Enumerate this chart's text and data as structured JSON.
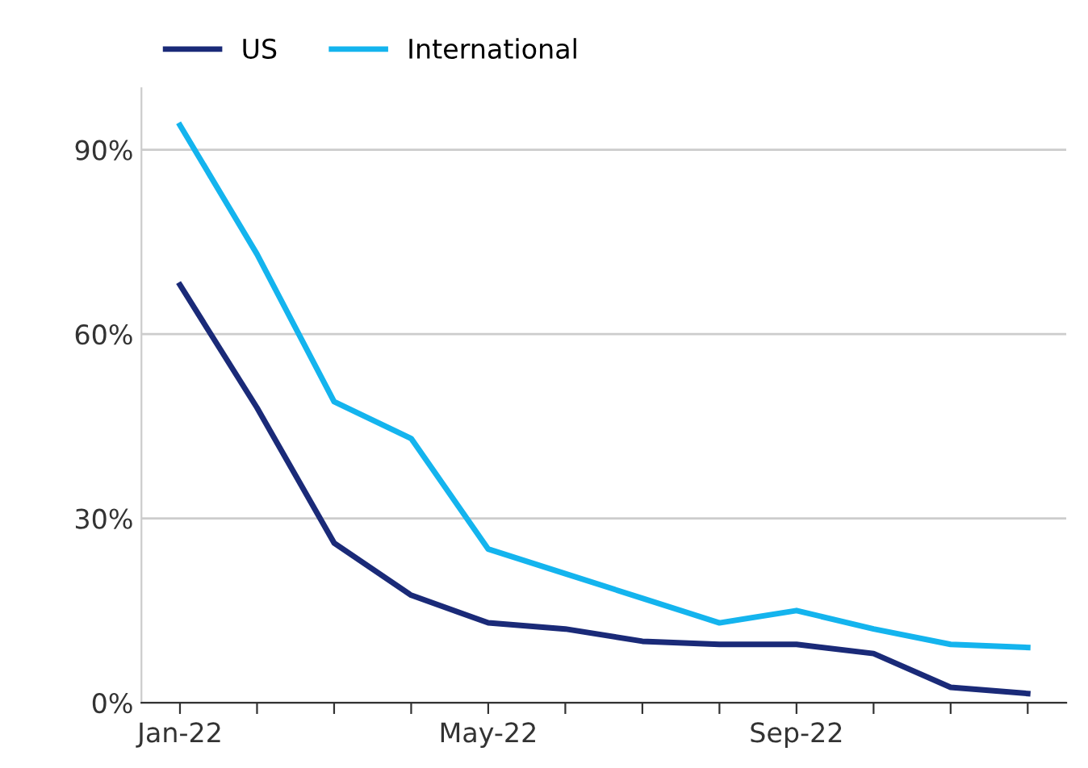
{
  "chart_data": {
    "type": "line",
    "categories": [
      "Jan-22",
      null,
      null,
      null,
      "May-22",
      null,
      null,
      null,
      "Sep-22",
      null,
      null,
      null
    ],
    "series": [
      {
        "name": "US",
        "color": "#1a2a78",
        "values": [
          68,
          48,
          26,
          17.5,
          13,
          12,
          10,
          9.5,
          9.5,
          8,
          2.5,
          1.5
        ]
      },
      {
        "name": "International",
        "color": "#14b4ee",
        "values": [
          94,
          73,
          49,
          43,
          25,
          21,
          17,
          13,
          15,
          12,
          9.5,
          9
        ]
      }
    ],
    "ylim": [
      0,
      100
    ],
    "yticks": [
      {
        "value": 0,
        "label": "0%"
      },
      {
        "value": 30,
        "label": "30%"
      },
      {
        "value": 60,
        "label": "60%"
      },
      {
        "value": 90,
        "label": "90%"
      }
    ],
    "grid": "y",
    "legend": "top left",
    "line_style": "solid",
    "marker": "none"
  }
}
